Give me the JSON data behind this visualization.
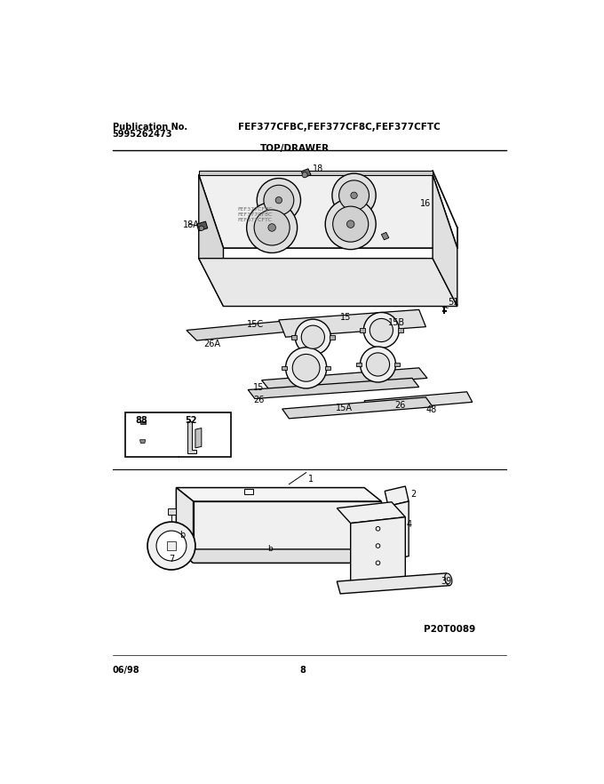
{
  "title_model": "FEF377CFBC,FEF377CF8C,FEF377CFTC",
  "pub_label": "Publication No.",
  "pub_number": "5995262473",
  "section_label": "TOP/DRAWER",
  "page_number": "8",
  "date": "06/98",
  "image_ref": "P20T0089",
  "bg_color": "#ffffff",
  "line_color": "#000000",
  "text_color": "#000000",
  "fig_width": 6.8,
  "fig_height": 8.82,
  "dpi": 100
}
